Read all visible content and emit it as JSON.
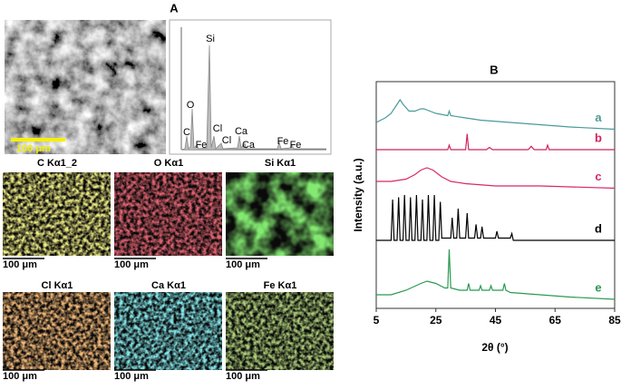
{
  "panel_a": {
    "label": "A",
    "sem_scale": "100 μm",
    "spectrum_labels": [
      "Si",
      "O",
      "C",
      "Fe",
      "Cl",
      "Cl",
      "Ca",
      "Ca",
      "Fe",
      "Fe"
    ],
    "maps": [
      {
        "title": "C Kα1_2",
        "scale": "100 μm",
        "color": "#d8d23a"
      },
      {
        "title": "O Kα1",
        "scale": "100 μm",
        "color": "#c0202a"
      },
      {
        "title": "Si Kα1",
        "scale": "100 μm",
        "color": "#3ad02a"
      },
      {
        "title": "Cl Kα1",
        "scale": "100 μm",
        "color": "#e07a30"
      },
      {
        "title": "Ca Kα1",
        "scale": "100 μm",
        "color": "#3ac8d0"
      },
      {
        "title": "Fe Kα1",
        "scale": "100 μm",
        "color": "#6a9a30"
      }
    ]
  },
  "chart_data": {
    "type": "line",
    "label": "B",
    "x_label": "2θ (°)",
    "y_label": "Intensity (a.u.)",
    "xlim": [
      5,
      85
    ],
    "xticks": [
      5,
      25,
      45,
      65,
      85
    ],
    "ylim": [
      0,
      100
    ],
    "series": [
      {
        "name": "a",
        "color": "#4a9a9a",
        "x": [
          5,
          8,
          10,
          12,
          13,
          14,
          16,
          18,
          20,
          21,
          23,
          25,
          29,
          29.5,
          30,
          35,
          40,
          50,
          60,
          70,
          85
        ],
        "values": [
          82,
          84,
          86,
          90,
          92,
          90,
          87,
          87,
          88,
          88,
          87,
          86,
          85,
          87,
          85,
          84,
          83,
          82,
          81,
          80,
          79
        ]
      },
      {
        "name": "b",
        "color": "#d0245a",
        "x": [
          5,
          29,
          29.5,
          30,
          35,
          35.5,
          36,
          42,
          43,
          44,
          56,
          57,
          58,
          62,
          62.5,
          63,
          85
        ],
        "values": [
          70,
          70,
          72,
          70,
          70,
          77,
          70,
          70,
          71,
          70,
          70,
          71.5,
          70,
          70,
          72,
          70,
          70
        ]
      },
      {
        "name": "c",
        "color": "#d8286a",
        "x": [
          5,
          10,
          15,
          18,
          20,
          22,
          24,
          27,
          30,
          35,
          45,
          60,
          85
        ],
        "values": [
          56,
          56,
          57,
          59,
          61,
          62,
          61,
          58,
          56,
          55,
          54,
          54,
          53
        ]
      },
      {
        "name": "d",
        "color": "#000000",
        "x": [
          5,
          10,
          10.5,
          11,
          12,
          12.5,
          13,
          14,
          14.5,
          15,
          16,
          16.5,
          17,
          18,
          18.5,
          19,
          20,
          20.5,
          21,
          22,
          22.5,
          23,
          24,
          24.5,
          25,
          26,
          26.5,
          27,
          30,
          30.5,
          31,
          32,
          32.5,
          33,
          35,
          35.5,
          36,
          38,
          38.5,
          39,
          40,
          40.5,
          41,
          45,
          45.5,
          46,
          50,
          50.5,
          51,
          55,
          60,
          85
        ],
        "values": [
          30,
          30,
          48,
          30,
          30,
          49,
          30,
          30,
          50,
          30,
          30,
          49,
          30,
          30,
          50,
          30,
          30,
          48,
          30,
          30,
          50,
          30,
          30,
          50,
          30,
          30,
          47,
          31,
          31,
          40,
          31,
          31,
          44,
          31,
          31,
          42,
          31,
          31,
          37,
          31,
          31,
          36,
          31,
          31,
          34,
          31,
          31,
          33,
          30,
          30,
          30,
          30
        ]
      },
      {
        "name": "e",
        "color": "#2a9a50",
        "x": [
          5,
          10,
          15,
          20,
          22,
          25,
          28,
          29,
          29.5,
          30,
          33,
          35.5,
          36,
          36.5,
          39.5,
          40,
          40.5,
          43,
          43.5,
          44,
          47.5,
          48,
          48.5,
          50,
          60,
          70,
          85
        ],
        "values": [
          6,
          6,
          8,
          11,
          12,
          11,
          9,
          9,
          26,
          9,
          8,
          8,
          11,
          8,
          8,
          10,
          8,
          8,
          10,
          8,
          8,
          11,
          8,
          7,
          6,
          5,
          4
        ]
      }
    ]
  }
}
